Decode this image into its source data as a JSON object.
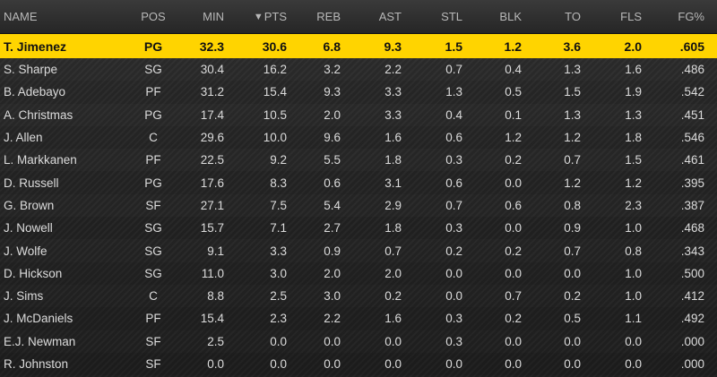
{
  "header": {
    "name": "NAME",
    "pos": "POS",
    "min": "MIN",
    "pts": "PTS",
    "pts_sort_icon": "▼",
    "reb": "REB",
    "ast": "AST",
    "stl": "STL",
    "blk": "BLK",
    "to": "TO",
    "fls": "FLS",
    "fg": "FG%"
  },
  "highlight_color": "#ffd400",
  "players": [
    {
      "name": "T. Jimenez",
      "pos": "PG",
      "min": "32.3",
      "pts": "30.6",
      "reb": "6.8",
      "ast": "9.3",
      "stl": "1.5",
      "blk": "1.2",
      "to": "3.6",
      "fls": "2.0",
      "fg": ".605"
    },
    {
      "name": "S. Sharpe",
      "pos": "SG",
      "min": "30.4",
      "pts": "16.2",
      "reb": "3.2",
      "ast": "2.2",
      "stl": "0.7",
      "blk": "0.4",
      "to": "1.3",
      "fls": "1.6",
      "fg": ".486"
    },
    {
      "name": "B. Adebayo",
      "pos": "PF",
      "min": "31.2",
      "pts": "15.4",
      "reb": "9.3",
      "ast": "3.3",
      "stl": "1.3",
      "blk": "0.5",
      "to": "1.5",
      "fls": "1.9",
      "fg": ".542"
    },
    {
      "name": "A. Christmas",
      "pos": "PG",
      "min": "17.4",
      "pts": "10.5",
      "reb": "2.0",
      "ast": "3.3",
      "stl": "0.4",
      "blk": "0.1",
      "to": "1.3",
      "fls": "1.3",
      "fg": ".451"
    },
    {
      "name": "J. Allen",
      "pos": "C",
      "min": "29.6",
      "pts": "10.0",
      "reb": "9.6",
      "ast": "1.6",
      "stl": "0.6",
      "blk": "1.2",
      "to": "1.2",
      "fls": "1.8",
      "fg": ".546"
    },
    {
      "name": "L. Markkanen",
      "pos": "PF",
      "min": "22.5",
      "pts": "9.2",
      "reb": "5.5",
      "ast": "1.8",
      "stl": "0.3",
      "blk": "0.2",
      "to": "0.7",
      "fls": "1.5",
      "fg": ".461"
    },
    {
      "name": "D. Russell",
      "pos": "PG",
      "min": "17.6",
      "pts": "8.3",
      "reb": "0.6",
      "ast": "3.1",
      "stl": "0.6",
      "blk": "0.0",
      "to": "1.2",
      "fls": "1.2",
      "fg": ".395"
    },
    {
      "name": "G. Brown",
      "pos": "SF",
      "min": "27.1",
      "pts": "7.5",
      "reb": "5.4",
      "ast": "2.9",
      "stl": "0.7",
      "blk": "0.6",
      "to": "0.8",
      "fls": "2.3",
      "fg": ".387"
    },
    {
      "name": "J. Nowell",
      "pos": "SG",
      "min": "15.7",
      "pts": "7.1",
      "reb": "2.7",
      "ast": "1.8",
      "stl": "0.3",
      "blk": "0.0",
      "to": "0.9",
      "fls": "1.0",
      "fg": ".468"
    },
    {
      "name": "J. Wolfe",
      "pos": "SG",
      "min": "9.1",
      "pts": "3.3",
      "reb": "0.9",
      "ast": "0.7",
      "stl": "0.2",
      "blk": "0.2",
      "to": "0.7",
      "fls": "0.8",
      "fg": ".343"
    },
    {
      "name": "D. Hickson",
      "pos": "SG",
      "min": "11.0",
      "pts": "3.0",
      "reb": "2.0",
      "ast": "2.0",
      "stl": "0.0",
      "blk": "0.0",
      "to": "0.0",
      "fls": "1.0",
      "fg": ".500"
    },
    {
      "name": "J. Sims",
      "pos": "C",
      "min": "8.8",
      "pts": "2.5",
      "reb": "3.0",
      "ast": "0.2",
      "stl": "0.0",
      "blk": "0.7",
      "to": "0.2",
      "fls": "1.0",
      "fg": ".412"
    },
    {
      "name": "J. McDaniels",
      "pos": "PF",
      "min": "15.4",
      "pts": "2.3",
      "reb": "2.2",
      "ast": "1.6",
      "stl": "0.3",
      "blk": "0.2",
      "to": "0.5",
      "fls": "1.1",
      "fg": ".492"
    },
    {
      "name": "E.J. Newman",
      "pos": "SF",
      "min": "2.5",
      "pts": "0.0",
      "reb": "0.0",
      "ast": "0.0",
      "stl": "0.3",
      "blk": "0.0",
      "to": "0.0",
      "fls": "0.0",
      "fg": ".000"
    },
    {
      "name": "R. Johnston",
      "pos": "SF",
      "min": "0.0",
      "pts": "0.0",
      "reb": "0.0",
      "ast": "0.0",
      "stl": "0.0",
      "blk": "0.0",
      "to": "0.0",
      "fls": "0.0",
      "fg": ".000"
    }
  ]
}
